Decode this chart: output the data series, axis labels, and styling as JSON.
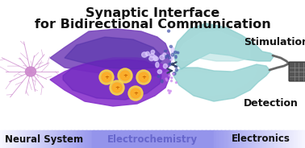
{
  "title_line1": "Synaptic Interface",
  "title_line2": "for Bidirectional Communication",
  "title_fontsize": 11.5,
  "title_color": "#111111",
  "label_stimulation": "Stimulation",
  "label_detection": "Detection",
  "label_neural": "Neural System",
  "label_electrochem": "Electrochemistry",
  "label_electronics": "Electronics",
  "label_fontsize": 8.5,
  "side_label_fontsize": 9,
  "bg_color": "#ffffff",
  "neural_color": "#bb77cc",
  "synapse_upper_color1": "#5533aa",
  "synapse_upper_color2": "#8855cc",
  "synapse_lower_color1": "#6622bb",
  "synapse_lower_color2": "#9944dd",
  "teal_upper_color": "#88cccc",
  "teal_lower_color": "#99ddcc",
  "chip_color": "#555555",
  "arrow_color": "#334466",
  "figsize": [
    3.78,
    1.84
  ],
  "dpi": 100
}
